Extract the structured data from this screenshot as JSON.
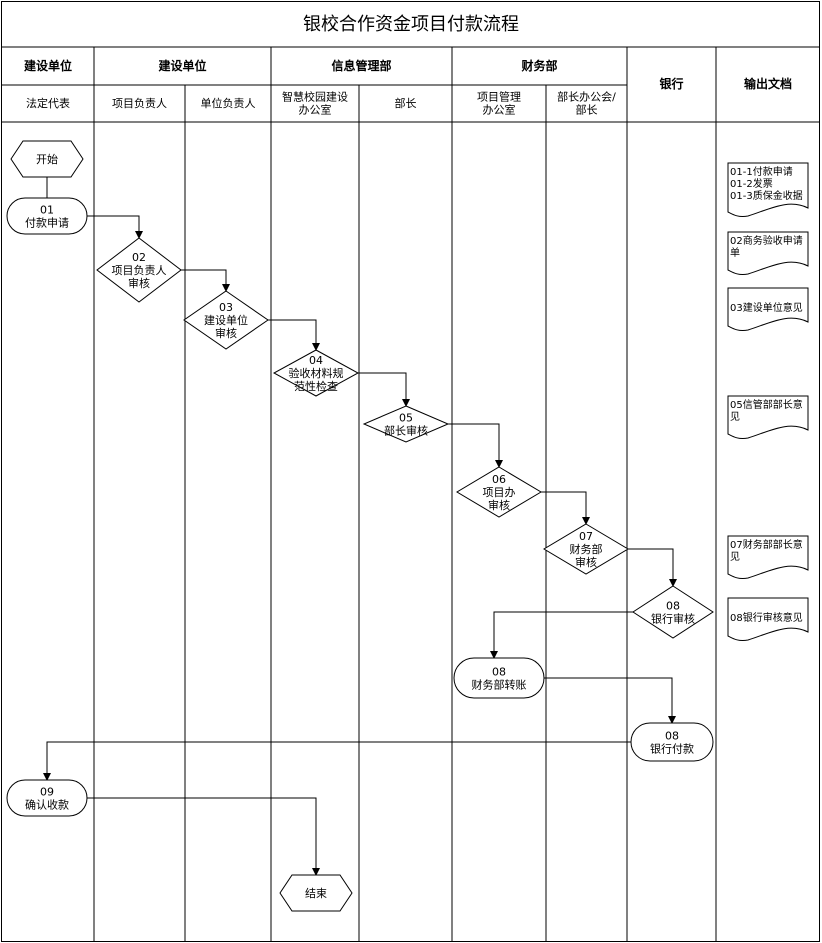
{
  "title": "银校合作资金项目付款流程",
  "header_groups": [
    "建设单位",
    "建设单位",
    "信息管理部",
    "财务部",
    "银行",
    "输出文档"
  ],
  "sub_headers": [
    "法定代表",
    "项目负责人",
    "单位负责人",
    "智慧校园建设|办公室",
    "部长",
    "项目管理|办公室",
    "部长办公会/|部长"
  ],
  "nodes": {
    "start": "开始",
    "n01": [
      "01",
      "付款申请"
    ],
    "n02": [
      "02",
      "项目负责人",
      "审核"
    ],
    "n03": [
      "03",
      "建设单位",
      "审核"
    ],
    "n04": [
      "04",
      "验收材料规",
      "范性检查"
    ],
    "n05": [
      "05",
      "部长审核"
    ],
    "n06": [
      "06",
      "项目办",
      "审核"
    ],
    "n07": [
      "07",
      "财务部",
      "审核"
    ],
    "n08a": [
      "08",
      "银行审核"
    ],
    "n08b": [
      "08",
      "财务部转账"
    ],
    "n08c": [
      "08",
      "银行付款"
    ],
    "n09": [
      "09",
      "确认收款"
    ],
    "end": "结束"
  },
  "documents": [
    [
      "01-1付款申请",
      "01-2发票",
      "01-3质保金收据"
    ],
    [
      "02商务验收申请",
      "单"
    ],
    [
      "03建设单位意见"
    ],
    [
      "05信管部部长意",
      "见"
    ],
    [
      "07财务部部长意",
      "见"
    ],
    [
      "08银行审核意见"
    ]
  ]
}
